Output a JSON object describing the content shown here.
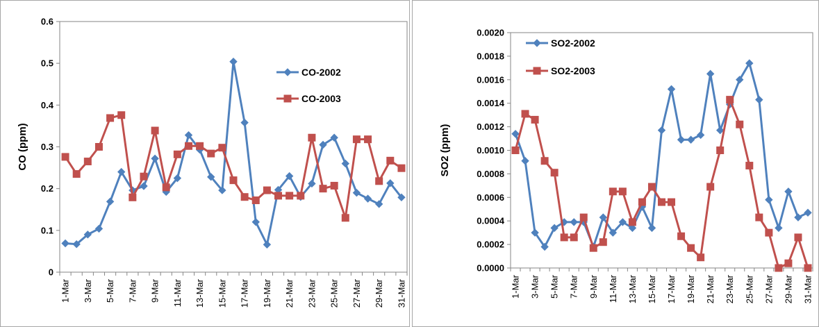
{
  "colors": {
    "series_2002": "#4F81BD",
    "series_2003": "#C0504D",
    "axis": "#868686",
    "frame": "#A6A6A6"
  },
  "chart_data": [
    {
      "type": "line",
      "ylabel": "CO (ppm)",
      "xlabel": "",
      "ylim": [
        0,
        0.6
      ],
      "yticks": [
        0,
        0.1,
        0.2,
        0.3,
        0.4,
        0.5,
        0.6
      ],
      "ytick_labels": [
        "0",
        "0.1",
        "0.2",
        "0.3",
        "0.4",
        "0.5",
        "0.6"
      ],
      "x_labels": [
        "1-Mar",
        "3-Mar",
        "5-Mar",
        "7-Mar",
        "9-Mar",
        "11-Mar",
        "13-Mar",
        "15-Mar",
        "17-Mar",
        "19-Mar",
        "21-Mar",
        "23-Mar",
        "25-Mar",
        "27-Mar",
        "29-Mar",
        "31-Mar"
      ],
      "n_points": 31,
      "legend": "right",
      "series": [
        {
          "name": "CO-2002",
          "marker": "diamond",
          "values": [
            0.069,
            0.067,
            0.09,
            0.104,
            0.169,
            0.24,
            0.196,
            0.206,
            0.272,
            0.192,
            0.225,
            0.328,
            0.293,
            0.228,
            0.196,
            0.504,
            0.358,
            0.12,
            0.066,
            0.197,
            0.23,
            0.18,
            0.212,
            0.305,
            0.322,
            0.26,
            0.19,
            0.176,
            0.163,
            0.213,
            0.179
          ]
        },
        {
          "name": "CO-2003",
          "marker": "square",
          "values": [
            0.276,
            0.235,
            0.265,
            0.3,
            0.369,
            0.376,
            0.179,
            0.229,
            0.339,
            0.203,
            0.282,
            0.302,
            0.302,
            0.284,
            0.298,
            0.22,
            0.18,
            0.172,
            0.196,
            0.183,
            0.183,
            0.183,
            0.322,
            0.2,
            0.207,
            0.13,
            0.318,
            0.318,
            0.218,
            0.267,
            0.249
          ]
        }
      ]
    },
    {
      "type": "line",
      "ylabel": "SO2 (ppm)",
      "xlabel": "",
      "ylim": [
        0,
        0.002
      ],
      "yticks": [
        0,
        0.0002,
        0.0004,
        0.0006,
        0.0008,
        0.001,
        0.0012,
        0.0014,
        0.0016,
        0.0018,
        0.002
      ],
      "ytick_labels": [
        "0.0000",
        "0.0002",
        "0.0004",
        "0.0006",
        "0.0008",
        "0.0010",
        "0.0012",
        "0.0014",
        "0.0016",
        "0.0018",
        "0.0020"
      ],
      "x_labels": [
        "1-Mar",
        "3-Mar",
        "5-Mar",
        "7-Mar",
        "9-Mar",
        "11-Mar",
        "13-Mar",
        "15-Mar",
        "17-Mar",
        "19-Mar",
        "21-Mar",
        "23-Mar",
        "25-Mar",
        "27-Mar",
        "29-Mar",
        "31-Mar"
      ],
      "n_points": 31,
      "legend": "top-left",
      "series": [
        {
          "name": "SO2-2002",
          "marker": "diamond",
          "values": [
            0.00114,
            0.00091,
            0.0003,
            0.00018,
            0.00034,
            0.00039,
            0.00039,
            0.00039,
            0.00018,
            0.00043,
            0.0003,
            0.00039,
            0.00034,
            0.00052,
            0.00034,
            0.00117,
            0.00152,
            0.00109,
            0.00109,
            0.00113,
            0.00165,
            0.00117,
            0.00139,
            0.0016,
            0.00174,
            0.00143,
            0.00058,
            0.00034,
            0.00065,
            0.00043,
            0.00047
          ]
        },
        {
          "name": "SO2-2003",
          "marker": "square",
          "values": [
            0.001,
            0.00131,
            0.00126,
            0.00091,
            0.00081,
            0.00026,
            0.00026,
            0.00043,
            0.00017,
            0.00022,
            0.00065,
            0.00065,
            0.00039,
            0.00056,
            0.00069,
            0.00056,
            0.00056,
            0.00027,
            0.00017,
            9e-05,
            0.00069,
            0.001,
            0.00143,
            0.00122,
            0.00087,
            0.00043,
            0.0003,
            0.0,
            4e-05,
            0.00026,
            0.0
          ]
        }
      ]
    }
  ]
}
